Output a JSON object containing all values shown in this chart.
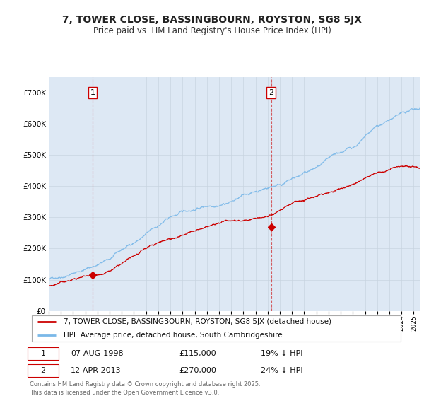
{
  "title": "7, TOWER CLOSE, BASSINGBOURN, ROYSTON, SG8 5JX",
  "subtitle": "Price paid vs. HM Land Registry's House Price Index (HPI)",
  "hpi_color": "#7ab8e8",
  "price_color": "#cc0000",
  "background_color": "#dde8f4",
  "plot_bg": "#ffffff",
  "ylim": [
    0,
    750000
  ],
  "yticks": [
    0,
    100000,
    200000,
    300000,
    400000,
    500000,
    600000,
    700000
  ],
  "legend_label_red": "7, TOWER CLOSE, BASSINGBOURN, ROYSTON, SG8 5JX (detached house)",
  "legend_label_blue": "HPI: Average price, detached house, South Cambridgeshire",
  "sale1_date": "07-AUG-1998",
  "sale1_price": 115000,
  "sale1_pct": "19% ↓ HPI",
  "sale1_year": 1998.6,
  "sale2_date": "12-APR-2013",
  "sale2_price": 270000,
  "sale2_pct": "24% ↓ HPI",
  "sale2_year": 2013.28,
  "footnote": "Contains HM Land Registry data © Crown copyright and database right 2025.\nThis data is licensed under the Open Government Licence v3.0.",
  "xmin": 1995,
  "xmax": 2025.5
}
